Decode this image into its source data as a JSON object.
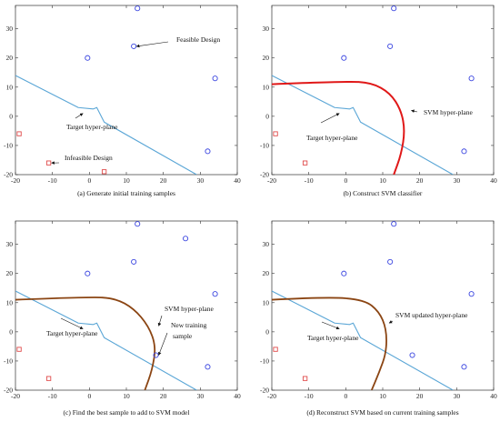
{
  "colors": {
    "target": "#5aa6d6",
    "feasible": "#3b46e0",
    "infeasible": "#e04a4a",
    "svm_b": "#e01818",
    "svm_cd": "#8b4513",
    "axis": "#333333",
    "annotation": "#111111"
  },
  "chart_data": [
    {
      "type": "scatter",
      "caption": "(a) Generate initial training samples",
      "xlim": [
        -20,
        40
      ],
      "ylim": [
        -20,
        38
      ],
      "xticks": [
        -20,
        -10,
        0,
        10,
        20,
        30,
        40
      ],
      "yticks": [
        -20,
        -10,
        0,
        10,
        20,
        30
      ],
      "feasible_points": [
        [
          13,
          37
        ],
        [
          12,
          24
        ],
        [
          -0.5,
          20
        ],
        [
          34,
          13
        ],
        [
          32,
          -12
        ]
      ],
      "infeasible_points": [
        [
          -19,
          -6
        ],
        [
          -11,
          -16
        ],
        [
          4,
          -19
        ]
      ],
      "new_point": null,
      "target_line": [
        [
          -20,
          14
        ],
        [
          -3,
          3
        ],
        [
          1,
          2.5
        ],
        [
          2,
          3
        ],
        [
          4,
          -2
        ],
        [
          29,
          -20
        ]
      ],
      "svm_curve": null,
      "annotations": [
        {
          "text": "Feasible Design",
          "at": [
            12,
            24
          ]
        },
        {
          "text": "Target hyper-plane",
          "at": [
            -1,
            1
          ]
        },
        {
          "text": "Infeasible Design",
          "at": [
            -11,
            -16
          ]
        }
      ]
    },
    {
      "type": "scatter",
      "caption": "(b) Construct SVM classifier",
      "xlim": [
        -20,
        40
      ],
      "ylim": [
        -20,
        38
      ],
      "xticks": [
        -20,
        -10,
        0,
        10,
        20,
        30,
        40
      ],
      "yticks": [
        -20,
        -10,
        0,
        10,
        20,
        30
      ],
      "feasible_points": [
        [
          13,
          37
        ],
        [
          12,
          24
        ],
        [
          -0.5,
          20
        ],
        [
          34,
          13
        ],
        [
          32,
          -12
        ]
      ],
      "infeasible_points": [
        [
          -19,
          -6
        ],
        [
          -11,
          -16
        ]
      ],
      "new_point": null,
      "target_line": [
        [
          -20,
          14
        ],
        [
          -3,
          3
        ],
        [
          1,
          2.5
        ],
        [
          2,
          3
        ],
        [
          4,
          -2
        ],
        [
          29,
          -20
        ]
      ],
      "svm_curve": [
        [
          -20,
          11
        ],
        [
          0,
          12
        ],
        [
          7,
          11.5
        ],
        [
          12,
          8
        ],
        [
          15,
          2
        ],
        [
          16,
          -5
        ],
        [
          15,
          -13
        ],
        [
          13,
          -20
        ]
      ],
      "annotations": [
        {
          "text": "SVM hyper-plane",
          "at": [
            17,
            2
          ]
        },
        {
          "text": "Target hyper-plane",
          "at": [
            -1,
            1
          ]
        }
      ]
    },
    {
      "type": "scatter",
      "caption": "(c) Find the best sample to add to SVM model",
      "xlim": [
        -20,
        40
      ],
      "ylim": [
        -20,
        38
      ],
      "xticks": [
        -20,
        -10,
        0,
        10,
        20,
        30,
        40
      ],
      "yticks": [
        -20,
        -10,
        0,
        10,
        20,
        30
      ],
      "feasible_points": [
        [
          13,
          37
        ],
        [
          26,
          32
        ],
        [
          12,
          24
        ],
        [
          -0.5,
          20
        ],
        [
          34,
          13
        ],
        [
          32,
          -12
        ]
      ],
      "infeasible_points": [
        [
          -19,
          -6
        ],
        [
          -11,
          -16
        ]
      ],
      "new_point": [
        18,
        -8
      ],
      "target_line": [
        [
          -20,
          14
        ],
        [
          -3,
          3
        ],
        [
          1,
          2.5
        ],
        [
          2,
          3
        ],
        [
          4,
          -2
        ],
        [
          29,
          -20
        ]
      ],
      "svm_curve": [
        [
          -20,
          11
        ],
        [
          0,
          12
        ],
        [
          7,
          11.5
        ],
        [
          12,
          8
        ],
        [
          16,
          2
        ],
        [
          18,
          -5
        ],
        [
          17,
          -13
        ],
        [
          15,
          -20
        ]
      ],
      "annotations": [
        {
          "text": "SVM hyper-plane",
          "at": [
            18,
            2
          ]
        },
        {
          "text": "Target hyper-plane",
          "at": [
            -1,
            1
          ]
        },
        {
          "text": "New training",
          "at": [
            18,
            -8
          ]
        },
        {
          "text": "sample",
          "at": [
            18,
            -8
          ]
        }
      ]
    },
    {
      "type": "scatter",
      "caption": "(d) Reconstruct SVM based on current training samples",
      "xlim": [
        -20,
        40
      ],
      "ylim": [
        -20,
        38
      ],
      "xticks": [
        -20,
        -10,
        0,
        10,
        20,
        30,
        40
      ],
      "yticks": [
        -20,
        -10,
        0,
        10,
        20,
        30
      ],
      "feasible_points": [
        [
          13,
          37
        ],
        [
          12,
          24
        ],
        [
          -0.5,
          20
        ],
        [
          34,
          13
        ],
        [
          18,
          -8
        ],
        [
          32,
          -12
        ]
      ],
      "infeasible_points": [
        [
          -19,
          -6
        ],
        [
          -11,
          -16
        ]
      ],
      "new_point": null,
      "target_line": [
        [
          -20,
          14
        ],
        [
          -3,
          3
        ],
        [
          1,
          2.5
        ],
        [
          2,
          3
        ],
        [
          4,
          -2
        ],
        [
          29,
          -20
        ]
      ],
      "svm_curve": [
        [
          -20,
          11
        ],
        [
          -5,
          12
        ],
        [
          5,
          11
        ],
        [
          9,
          7
        ],
        [
          11,
          1
        ],
        [
          11,
          -7
        ],
        [
          9,
          -14
        ],
        [
          7,
          -20
        ]
      ],
      "annotations": [
        {
          "text": "SVM updated hyper-plane",
          "at": [
            11,
            3
          ]
        },
        {
          "text": "Target hyper-plane",
          "at": [
            -1,
            1
          ]
        }
      ]
    }
  ]
}
